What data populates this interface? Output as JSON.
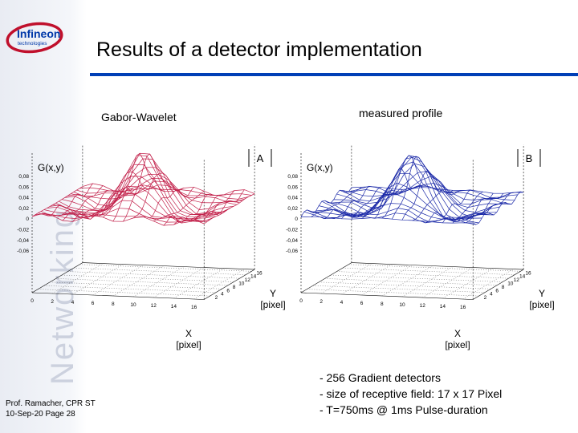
{
  "brand": {
    "logo_text": "Infineon",
    "logo_subtext": "technologies",
    "side_word": "Networking",
    "accent_color": "#003fb6"
  },
  "title": "Results of a detector implementation",
  "left_panel": {
    "heading": "Gabor-Wavelet",
    "corner_tag": "A",
    "z_label": "G(x,y)",
    "x_label": "X",
    "x_unit": "[pixel]",
    "y_label": "Y",
    "y_unit": "[pixel]",
    "surface_color": "#c2204a",
    "z_ticks": [
      "0,08",
      "0,06",
      "0,04",
      "0,02",
      "0",
      "-0,02",
      "-0,04",
      "-0,06"
    ],
    "x_ticks": [
      "0",
      "2",
      "4",
      "6",
      "8",
      "10",
      "12",
      "14",
      "16"
    ],
    "y_ticks": [
      "2",
      "4",
      "6",
      "8",
      "10",
      "12",
      "14",
      "16"
    ]
  },
  "right_panel": {
    "heading": "measured profile",
    "corner_tag": "B",
    "z_label": "G(x,y)",
    "x_label": "X",
    "x_unit": "[pixel]",
    "y_label": "Y",
    "y_unit": "[pixel]",
    "surface_color": "#1c2aa8",
    "z_ticks": [
      "0,08",
      "0,06",
      "0,04",
      "0,02",
      "0",
      "-0,02",
      "-0,04",
      "-0,06"
    ],
    "x_ticks": [
      "0",
      "2",
      "4",
      "6",
      "8",
      "10",
      "12",
      "14",
      "16"
    ],
    "y_ticks": [
      "2",
      "4",
      "6",
      "8",
      "10",
      "12",
      "14",
      "16"
    ]
  },
  "bullets": [
    "- 256 Gradient detectors",
    "- size of receptive field: 17 x 17 Pixel",
    "- T=750ms @ 1ms Pulse-duration"
  ],
  "footer": {
    "author": "Prof. Ramacher, CPR ST",
    "date_page": "10-Sep-20 Page 28"
  }
}
